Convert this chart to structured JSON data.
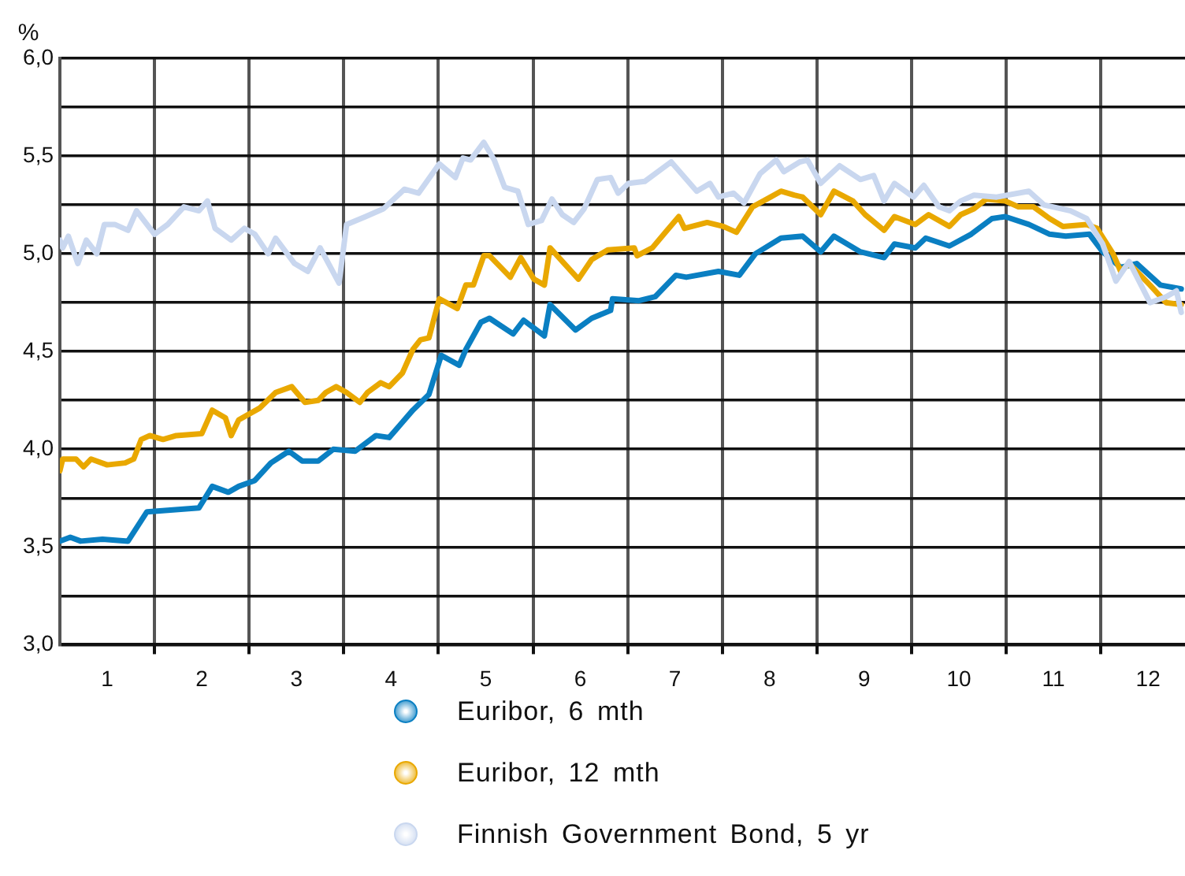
{
  "chart_data": {
    "type": "line",
    "ylabel": "%",
    "legend": "bottom",
    "grid": true,
    "line_style": "solid",
    "marker": "none",
    "xlim": [
      0,
      11.89
    ],
    "xticks": [
      {
        "value": 0.5,
        "label": "1"
      },
      {
        "value": 1,
        "label": null
      },
      {
        "value": 1.5,
        "label": "2"
      },
      {
        "value": 2,
        "label": null
      },
      {
        "value": 2.5,
        "label": "3"
      },
      {
        "value": 3,
        "label": null
      },
      {
        "value": 3.5,
        "label": "4"
      },
      {
        "value": 4,
        "label": null
      },
      {
        "value": 4.5,
        "label": "5"
      },
      {
        "value": 5,
        "label": null
      },
      {
        "value": 5.5,
        "label": "6"
      },
      {
        "value": 6,
        "label": null
      },
      {
        "value": 6.5,
        "label": "7"
      },
      {
        "value": 7,
        "label": null
      },
      {
        "value": 7.5,
        "label": "8"
      },
      {
        "value": 8,
        "label": null
      },
      {
        "value": 8.5,
        "label": "9"
      },
      {
        "value": 9,
        "label": null
      },
      {
        "value": 9.5,
        "label": "10"
      },
      {
        "value": 10,
        "label": null
      },
      {
        "value": 10.5,
        "label": "11"
      },
      {
        "value": 11,
        "label": null
      },
      {
        "value": 11.5,
        "label": "12"
      }
    ],
    "ylim": [
      3,
      6
    ],
    "yticks": [
      {
        "value": 3,
        "label": "3,0"
      },
      {
        "value": 3.25,
        "label": null
      },
      {
        "value": 3.5,
        "label": "3,5"
      },
      {
        "value": 3.75,
        "label": null
      },
      {
        "value": 4,
        "label": "4,0"
      },
      {
        "value": 4.25,
        "label": null
      },
      {
        "value": 4.5,
        "label": "4,5"
      },
      {
        "value": 4.75,
        "label": null
      },
      {
        "value": 5,
        "label": "5,0"
      },
      {
        "value": 5.25,
        "label": null
      },
      {
        "value": 5.5,
        "label": "5,5"
      },
      {
        "value": 5.75,
        "label": null
      },
      {
        "value": 6,
        "label": "6,0"
      }
    ],
    "series": [
      {
        "name": "Euribor, 6 mth",
        "color": "#0a7fc2",
        "x": [
          0,
          0.11,
          0.22,
          0.45,
          0.72,
          0.92,
          1.47,
          1.61,
          1.78,
          1.89,
          2.06,
          2.23,
          2.42,
          2.56,
          2.73,
          2.89,
          3.12,
          3.34,
          3.48,
          3.73,
          3.9,
          4.03,
          4.22,
          4.29,
          4.45,
          4.54,
          4.79,
          4.9,
          5.12,
          5.18,
          5.45,
          5.62,
          5.82,
          5.84,
          6.12,
          6.29,
          6.51,
          6.62,
          6.96,
          7.18,
          7.35,
          7.62,
          7.85,
          8.04,
          8.18,
          8.46,
          8.71,
          8.82,
          9.04,
          9.15,
          9.4,
          9.63,
          9.85,
          9.99,
          10.24,
          10.46,
          10.63,
          10.88,
          11.02,
          11.21,
          11.38,
          11.63,
          11.85
        ],
        "values": [
          3.53,
          3.55,
          3.53,
          3.54,
          3.53,
          3.68,
          3.7,
          3.81,
          3.78,
          3.81,
          3.84,
          3.93,
          3.99,
          3.94,
          3.94,
          4.0,
          3.99,
          4.07,
          4.06,
          4.2,
          4.28,
          4.48,
          4.43,
          4.51,
          4.65,
          4.67,
          4.59,
          4.66,
          4.58,
          4.74,
          4.61,
          4.67,
          4.71,
          4.77,
          4.76,
          4.78,
          4.89,
          4.88,
          4.91,
          4.89,
          5.0,
          5.08,
          5.09,
          5.01,
          5.09,
          5.01,
          4.98,
          5.05,
          5.03,
          5.08,
          5.04,
          5.1,
          5.18,
          5.19,
          5.15,
          5.1,
          5.09,
          5.1,
          5.01,
          4.93,
          4.95,
          4.84,
          4.82
        ]
      },
      {
        "name": "Euribor, 12 mth",
        "color": "#e9a800",
        "x": [
          0,
          0.03,
          0.17,
          0.25,
          0.33,
          0.5,
          0.69,
          0.78,
          0.86,
          0.95,
          1.09,
          1.23,
          1.5,
          1.61,
          1.75,
          1.81,
          1.89,
          2.11,
          2.28,
          2.45,
          2.59,
          2.73,
          2.81,
          2.92,
          3.03,
          3.17,
          3.25,
          3.39,
          3.48,
          3.62,
          3.73,
          3.81,
          3.9,
          4.01,
          4.2,
          4.29,
          4.37,
          4.48,
          4.54,
          4.76,
          4.87,
          5.01,
          5.12,
          5.18,
          5.48,
          5.62,
          5.79,
          6.07,
          6.1,
          6.26,
          6.4,
          6.54,
          6.6,
          6.84,
          7.01,
          7.15,
          7.32,
          7.51,
          7.62,
          7.76,
          7.85,
          8.04,
          8.18,
          8.38,
          8.51,
          8.71,
          8.82,
          9.04,
          9.18,
          9.4,
          9.52,
          9.66,
          9.79,
          9.99,
          10.13,
          10.29,
          10.46,
          10.6,
          10.85,
          10.96,
          11.13,
          11.21,
          11.3,
          11.52,
          11.69,
          11.85
        ],
        "values": [
          3.89,
          3.95,
          3.95,
          3.91,
          3.95,
          3.92,
          3.93,
          3.95,
          4.05,
          4.07,
          4.05,
          4.07,
          4.08,
          4.2,
          4.16,
          4.07,
          4.15,
          4.21,
          4.29,
          4.32,
          4.24,
          4.25,
          4.29,
          4.32,
          4.29,
          4.24,
          4.29,
          4.34,
          4.32,
          4.39,
          4.51,
          4.56,
          4.57,
          4.77,
          4.72,
          4.84,
          4.84,
          4.99,
          4.99,
          4.88,
          4.98,
          4.87,
          4.84,
          5.03,
          4.87,
          4.97,
          5.02,
          5.03,
          4.99,
          5.03,
          5.11,
          5.19,
          5.13,
          5.16,
          5.14,
          5.11,
          5.24,
          5.29,
          5.32,
          5.3,
          5.29,
          5.2,
          5.32,
          5.27,
          5.2,
          5.12,
          5.19,
          5.15,
          5.2,
          5.14,
          5.2,
          5.23,
          5.28,
          5.27,
          5.24,
          5.24,
          5.18,
          5.14,
          5.15,
          5.13,
          5.0,
          4.91,
          4.95,
          4.84,
          4.75,
          4.74
        ]
      },
      {
        "name": "Finnish Government Bond, 5 yr",
        "color": "#c9d7ef",
        "x": [
          0,
          0.03,
          0.09,
          0.19,
          0.28,
          0.39,
          0.47,
          0.58,
          0.72,
          0.81,
          1.0,
          1.14,
          1.31,
          1.47,
          1.56,
          1.64,
          1.81,
          1.95,
          2.06,
          2.2,
          2.28,
          2.48,
          2.62,
          2.75,
          2.95,
          3.03,
          3.23,
          3.42,
          3.64,
          3.79,
          4.01,
          4.18,
          4.26,
          4.34,
          4.48,
          4.59,
          4.7,
          4.84,
          4.95,
          5.09,
          5.2,
          5.31,
          5.43,
          5.54,
          5.68,
          5.82,
          5.9,
          6.01,
          6.18,
          6.46,
          6.73,
          6.87,
          6.96,
          7.12,
          7.23,
          7.4,
          7.57,
          7.65,
          7.82,
          7.9,
          8.04,
          8.24,
          8.46,
          8.6,
          8.71,
          8.82,
          9.02,
          9.13,
          9.29,
          9.4,
          9.52,
          9.66,
          9.9,
          10.24,
          10.4,
          10.68,
          10.85,
          11.02,
          11.16,
          11.3,
          11.52,
          11.69,
          11.8,
          11.85
        ],
        "values": [
          5.07,
          5.03,
          5.09,
          4.95,
          5.07,
          5.0,
          5.15,
          5.15,
          5.12,
          5.22,
          5.1,
          5.15,
          5.24,
          5.22,
          5.27,
          5.13,
          5.07,
          5.13,
          5.1,
          5.0,
          5.08,
          4.95,
          4.91,
          5.03,
          4.85,
          5.15,
          5.19,
          5.23,
          5.33,
          5.31,
          5.46,
          5.39,
          5.49,
          5.48,
          5.57,
          5.48,
          5.34,
          5.32,
          5.15,
          5.17,
          5.28,
          5.2,
          5.16,
          5.23,
          5.38,
          5.39,
          5.31,
          5.36,
          5.37,
          5.47,
          5.32,
          5.36,
          5.29,
          5.31,
          5.26,
          5.41,
          5.48,
          5.42,
          5.47,
          5.48,
          5.36,
          5.45,
          5.38,
          5.4,
          5.27,
          5.36,
          5.29,
          5.35,
          5.24,
          5.22,
          5.27,
          5.3,
          5.29,
          5.32,
          5.25,
          5.22,
          5.18,
          5.05,
          4.86,
          4.96,
          4.75,
          4.78,
          4.81,
          4.7
        ]
      }
    ]
  }
}
